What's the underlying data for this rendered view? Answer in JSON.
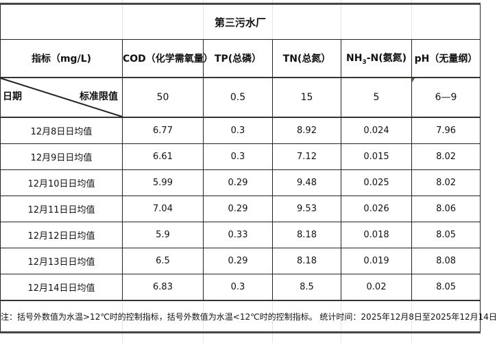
{
  "title": "第三污水厂",
  "header": {
    "indicator": "指标（mg/L)",
    "columns": [
      "COD（化学需氧量）",
      "TP(总磷）",
      "TN(总氮）",
      "NH3-N(氨氮)",
      "pH（无量纲）"
    ],
    "nh3_main": "NH",
    "nh3_sub": "3",
    "nh3_rest": "-N(氨氮)"
  },
  "standard": {
    "date_label": "日期",
    "limit_label": "标准限值",
    "values": [
      "50",
      "0.5",
      "15",
      "5",
      "6—9"
    ]
  },
  "rows": [
    {
      "date": "12月8日日均值",
      "values": [
        "6.77",
        "0.3",
        "8.92",
        "0.024",
        "7.96"
      ]
    },
    {
      "date": "12月9日日均值",
      "values": [
        "6.61",
        "0.3",
        "7.12",
        "0.015",
        "8.02"
      ]
    },
    {
      "date": "12月10日日均值",
      "values": [
        "5.99",
        "0.29",
        "9.48",
        "0.025",
        "8.02"
      ]
    },
    {
      "date": "12月11日日均值",
      "values": [
        "7.04",
        "0.29",
        "9.53",
        "0.026",
        "8.06"
      ]
    },
    {
      "date": "12月12日日均值",
      "values": [
        "5.9",
        "0.33",
        "8.18",
        "0.018",
        "8.05"
      ]
    },
    {
      "date": "12月13日日均值",
      "values": [
        "6.5",
        "0.29",
        "8.18",
        "0.019",
        "8.08"
      ]
    },
    {
      "date": "12月14日日均值",
      "values": [
        "6.83",
        "0.3",
        "8.5",
        "0.02",
        "8.05"
      ]
    }
  ],
  "note": "注：括号外数值为水温>12℃时的控制指标，括号外数值为水温<12℃时的控制指标。 统计时间：2025年12月8日至2025年12月14日"
}
